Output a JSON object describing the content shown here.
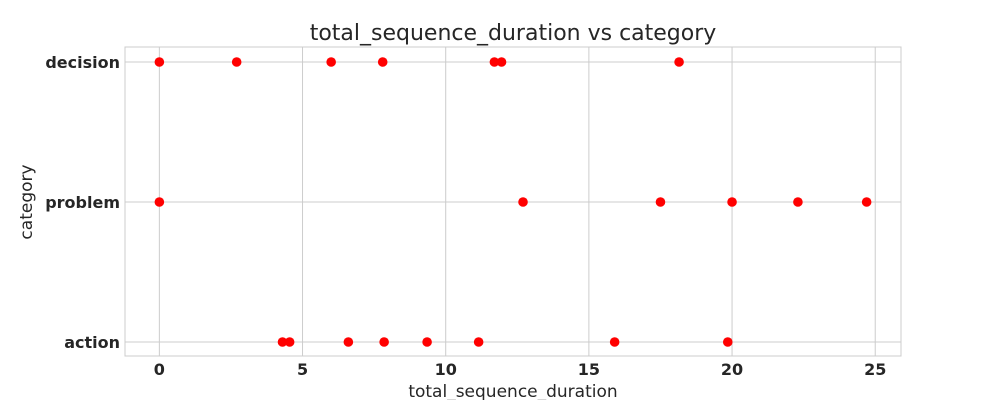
{
  "chart_data": {
    "type": "scatter",
    "title": "total_sequence_duration vs category",
    "xlabel": "total_sequence_duration",
    "ylabel": "category",
    "xlim": [
      -1.2,
      25.9
    ],
    "xticks": [
      0,
      5,
      10,
      15,
      20,
      25
    ],
    "categories": [
      "action",
      "problem",
      "decision"
    ],
    "grid": true,
    "marker_color": "#ff0000",
    "series": [
      {
        "points": [
          {
            "x": 0.0,
            "y": "decision"
          },
          {
            "x": 2.7,
            "y": "decision"
          },
          {
            "x": 6.0,
            "y": "decision"
          },
          {
            "x": 7.8,
            "y": "decision"
          },
          {
            "x": 11.7,
            "y": "decision"
          },
          {
            "x": 11.95,
            "y": "decision"
          },
          {
            "x": 18.15,
            "y": "decision"
          },
          {
            "x": 0.0,
            "y": "problem"
          },
          {
            "x": 12.7,
            "y": "problem"
          },
          {
            "x": 17.5,
            "y": "problem"
          },
          {
            "x": 20.0,
            "y": "problem"
          },
          {
            "x": 22.3,
            "y": "problem"
          },
          {
            "x": 24.7,
            "y": "problem"
          },
          {
            "x": 4.3,
            "y": "action"
          },
          {
            "x": 4.55,
            "y": "action"
          },
          {
            "x": 6.6,
            "y": "action"
          },
          {
            "x": 7.85,
            "y": "action"
          },
          {
            "x": 9.35,
            "y": "action"
          },
          {
            "x": 11.15,
            "y": "action"
          },
          {
            "x": 15.9,
            "y": "action"
          },
          {
            "x": 19.85,
            "y": "action"
          }
        ]
      }
    ]
  }
}
